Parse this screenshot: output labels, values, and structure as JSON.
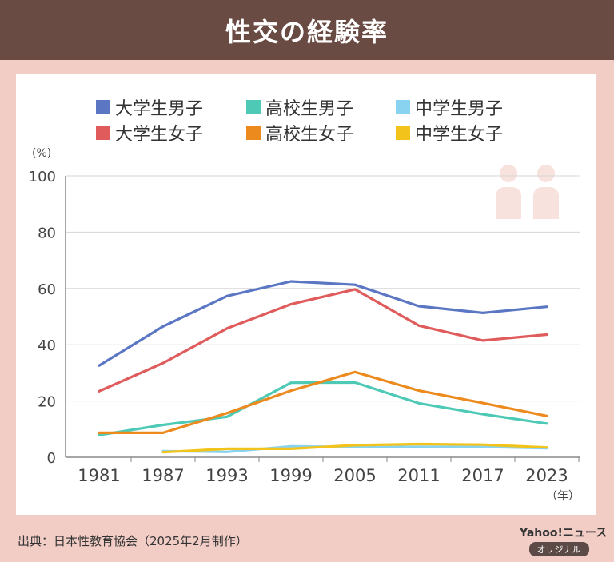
{
  "header": {
    "title": "性交の経験率"
  },
  "footer": {
    "source": "出典：日本性教育協会（2025年2月制作）",
    "brand": "Yahoo!ニュース",
    "badge": "オリジナル"
  },
  "icons": [
    "person-icon",
    "person-icon"
  ],
  "chart_data": {
    "type": "line",
    "x": [
      "1981",
      "1987",
      "1993",
      "1999",
      "2005",
      "2011",
      "2017",
      "2023"
    ],
    "y_unit": "(%)",
    "x_unit": "（年）",
    "ylim": [
      0,
      100
    ],
    "yticks": [
      0,
      20,
      40,
      60,
      80,
      100
    ],
    "grid": true,
    "legend_position": "top",
    "series": [
      {
        "name": "大学生男子",
        "color": "#5b77c4",
        "values": [
          32.6,
          46.5,
          57.3,
          62.5,
          61.3,
          53.7,
          51.3,
          53.5
        ]
      },
      {
        "name": "高校生男子",
        "color": "#4ec9b5",
        "values": [
          7.9,
          11.5,
          14.4,
          26.5,
          26.6,
          19.2,
          15.3,
          12.0
        ]
      },
      {
        "name": "中学生男子",
        "color": "#8ad3f0",
        "values": [
          null,
          2.2,
          1.9,
          3.9,
          3.6,
          3.7,
          3.7,
          3.2
        ]
      },
      {
        "name": "大学生女子",
        "color": "#e05b5b",
        "values": [
          23.5,
          33.5,
          45.8,
          54.4,
          59.7,
          46.8,
          41.5,
          43.6
        ]
      },
      {
        "name": "高校生女子",
        "color": "#ec8a1e",
        "values": [
          8.7,
          8.7,
          15.7,
          23.7,
          30.3,
          23.7,
          19.3,
          14.7
        ]
      },
      {
        "name": "中学生女子",
        "color": "#f2c41b",
        "values": [
          null,
          1.8,
          3.0,
          3.0,
          4.3,
          4.7,
          4.5,
          3.5
        ]
      }
    ]
  }
}
